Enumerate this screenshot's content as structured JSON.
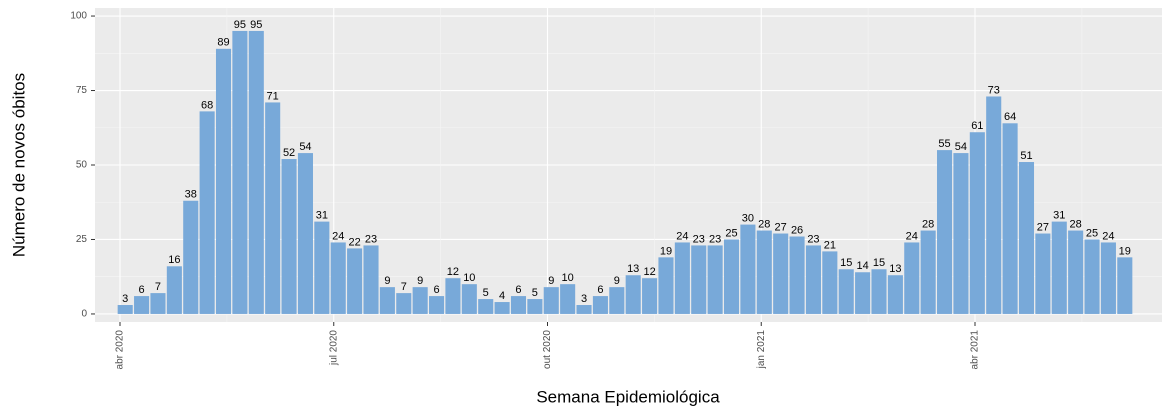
{
  "chart_data": {
    "type": "bar",
    "x_label": "Semana Epidemiológica",
    "y_label": "Número de novos óbitos",
    "categories": [
      null,
      null,
      null,
      null,
      null,
      null,
      null,
      null,
      null,
      null,
      null,
      null,
      null,
      null,
      null,
      null,
      null,
      null,
      null,
      null,
      null,
      null,
      null,
      null,
      null,
      null,
      null,
      null,
      null,
      null,
      null,
      null,
      null,
      null,
      null,
      null,
      null,
      null,
      null,
      null,
      null,
      null,
      null,
      null,
      null,
      null,
      null,
      null,
      null,
      null,
      null,
      null,
      null,
      null,
      null,
      null,
      null,
      null,
      null,
      null,
      null,
      null
    ],
    "values": [
      3,
      6,
      7,
      16,
      38,
      68,
      89,
      95,
      95,
      71,
      52,
      54,
      31,
      24,
      22,
      23,
      9,
      7,
      9,
      6,
      12,
      10,
      5,
      4,
      6,
      5,
      9,
      10,
      3,
      6,
      9,
      13,
      12,
      19,
      24,
      23,
      23,
      25,
      30,
      28,
      27,
      26,
      23,
      21,
      15,
      14,
      15,
      13,
      24,
      28,
      55,
      54,
      61,
      73,
      64,
      51,
      27,
      31,
      28,
      25,
      24,
      19
    ],
    "color": "#78a9d9",
    "xticks": [
      "abr 2020",
      "jul 2020",
      "out 2020",
      "jan 2021",
      "abr 2021"
    ],
    "ylim": [
      -2.7,
      102.7
    ],
    "yticks": [
      0,
      25,
      50,
      75,
      100
    ],
    "grid": true
  }
}
